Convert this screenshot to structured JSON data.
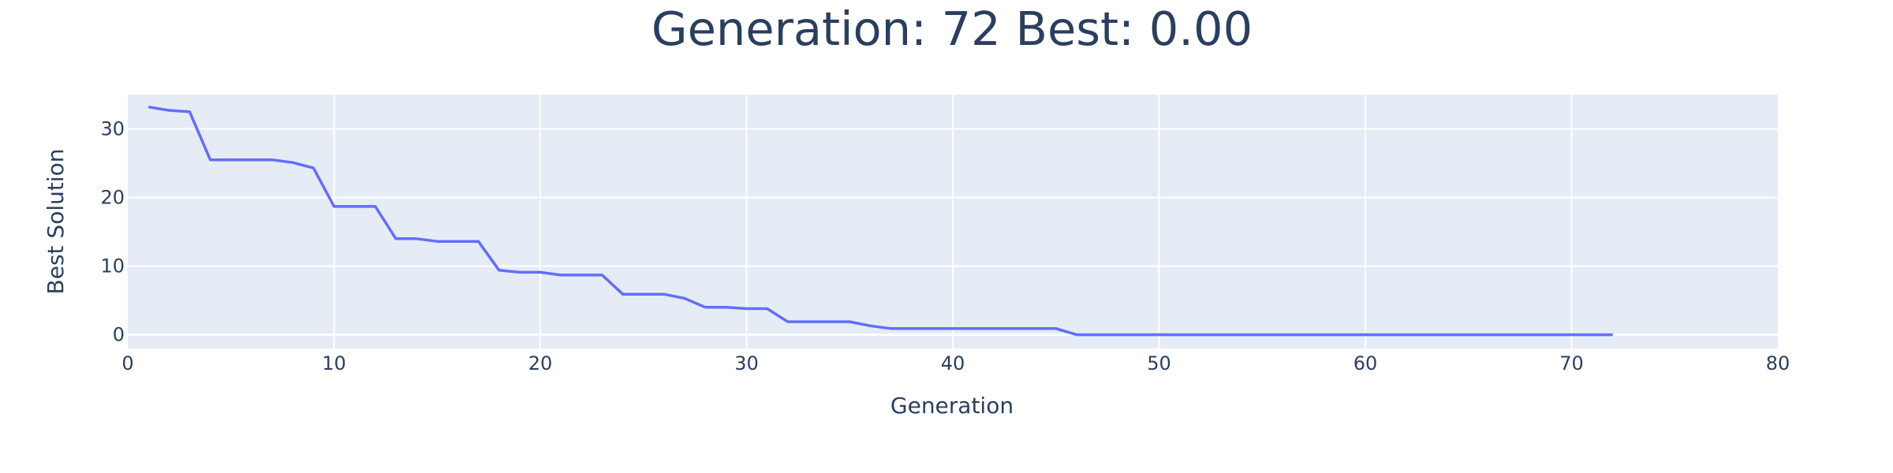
{
  "chart_data": {
    "type": "line",
    "title": "Generation: 72 Best: 0.00",
    "xlabel": "Generation",
    "ylabel": "Best Solution",
    "xlim": [
      0,
      80
    ],
    "ylim": [
      -2,
      35
    ],
    "xticks": [
      0,
      10,
      20,
      30,
      40,
      50,
      60,
      70,
      80
    ],
    "yticks": [
      0,
      10,
      20,
      30
    ],
    "grid": true,
    "legend": "none",
    "colors": {
      "line": "#636efa",
      "plot_bg": "#e5ecf6",
      "grid": "#ffffff",
      "text": "#2a3f5f"
    },
    "series": [
      {
        "x": [
          1,
          2,
          3,
          4,
          5,
          6,
          7,
          8,
          9,
          10,
          11,
          12,
          13,
          14,
          15,
          16,
          17,
          18,
          19,
          20,
          21,
          22,
          23,
          24,
          25,
          26,
          27,
          28,
          29,
          30,
          31,
          32,
          33,
          34,
          35,
          36,
          37,
          38,
          39,
          40,
          41,
          42,
          43,
          44,
          45,
          46,
          47,
          48,
          49,
          50,
          51,
          52,
          53,
          54,
          55,
          56,
          57,
          58,
          59,
          60,
          61,
          62,
          63,
          64,
          65,
          66,
          67,
          68,
          69,
          70,
          71,
          72
        ],
        "y": [
          33.2,
          32.7,
          32.5,
          25.5,
          25.5,
          25.5,
          25.5,
          25.1,
          24.3,
          18.7,
          18.7,
          18.7,
          14.0,
          14.0,
          13.6,
          13.6,
          13.6,
          9.4,
          9.1,
          9.1,
          8.7,
          8.7,
          8.7,
          5.9,
          5.9,
          5.9,
          5.3,
          4.0,
          4.0,
          3.8,
          3.8,
          1.9,
          1.9,
          1.9,
          1.9,
          1.3,
          0.9,
          0.9,
          0.9,
          0.9,
          0.9,
          0.9,
          0.9,
          0.9,
          0.9,
          0.0,
          0.0,
          0.0,
          0.0,
          0.0,
          0.0,
          0.0,
          0.0,
          0.0,
          0.0,
          0.0,
          0.0,
          0.0,
          0.0,
          0.0,
          0.0,
          0.0,
          0.0,
          0.0,
          0.0,
          0.0,
          0.0,
          0.0,
          0.0,
          0.0,
          0.0,
          0.0
        ]
      }
    ]
  }
}
